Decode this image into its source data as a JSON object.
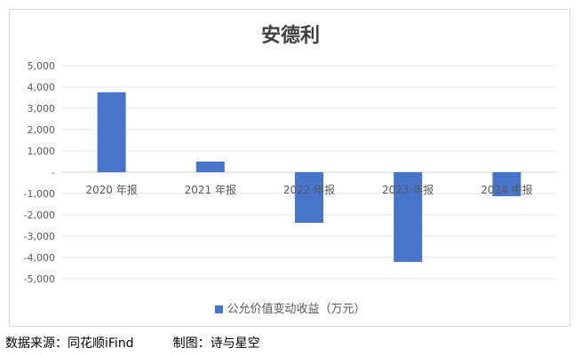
{
  "chart_data": {
    "type": "bar",
    "title": "安德利",
    "categories": [
      "2020 年报",
      "2021 年报",
      "2022 年报",
      "2023 年报",
      "2024 中报"
    ],
    "series": [
      {
        "name": "公允价值变动收益（万元）",
        "values": [
          3750,
          500,
          -2375,
          -4210,
          -1125
        ],
        "color": "#4874cb"
      }
    ],
    "ylim": [
      -5000,
      5000
    ],
    "yticks": [
      5000,
      4000,
      3000,
      2000,
      1000,
      0,
      -1000,
      -2000,
      -3000,
      -4000,
      -5000
    ],
    "ytick_labels": [
      "5,000",
      "4,000",
      "3,000",
      "2,000",
      "1,000",
      "-",
      "-1,000",
      "-2,000",
      "-3,000",
      "-4,000",
      "-5,000"
    ],
    "grid": true,
    "legend": "bottom"
  },
  "footer": {
    "source": "数据来源：同花顺iFind",
    "author": "制图：诗与星空"
  }
}
